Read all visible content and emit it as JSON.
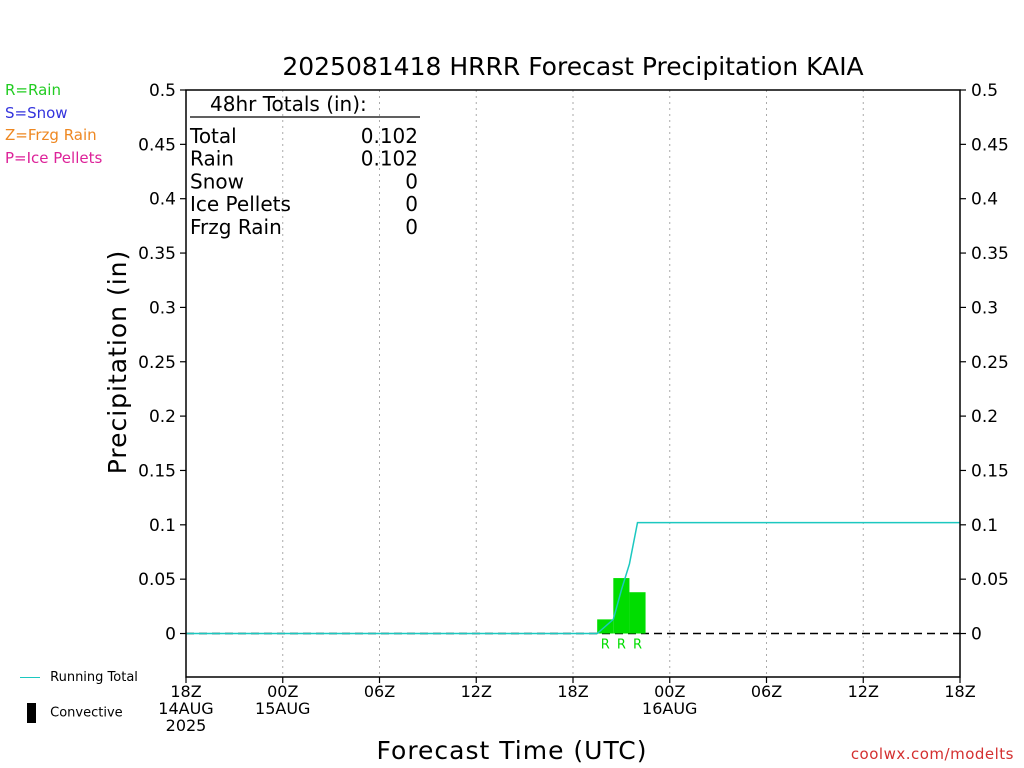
{
  "title": "2025081418 HRRR Forecast Precipitation KAIA",
  "precip_types": [
    {
      "label": "R=Rain",
      "color": "#22cc22"
    },
    {
      "label": "S=Snow",
      "color": "#3333dd"
    },
    {
      "label": "Z=Frzg Rain",
      "color": "#ee8822"
    },
    {
      "label": "P=Ice Pellets",
      "color": "#dd2299"
    }
  ],
  "legend": {
    "running_total": "Running Total",
    "convective": "Convective",
    "running_total_color": "#1cc8c0"
  },
  "totals_box": {
    "heading": "48hr Totals (in):",
    "rows": [
      {
        "label": "Total",
        "value": "0.102"
      },
      {
        "label": "Rain",
        "value": "0.102"
      },
      {
        "label": "Snow",
        "value": "0"
      },
      {
        "label": "Ice Pellets",
        "value": "0"
      },
      {
        "label": "Frzg Rain",
        "value": "0"
      }
    ]
  },
  "credit": "coolwx.com/modelts",
  "chart_data": {
    "type": "bar",
    "title": "2025081418 HRRR Forecast Precipitation KAIA",
    "xlabel": "Forecast Time (UTC)",
    "ylabel": "Precipitation (in)",
    "x_range_hours": [
      0,
      48
    ],
    "ylim": [
      -0.04,
      0.5
    ],
    "yticks": [
      0,
      0.05,
      0.1,
      0.15,
      0.2,
      0.25,
      0.3,
      0.35,
      0.4,
      0.45,
      0.5
    ],
    "xticks": [
      {
        "hour": 0,
        "lines": [
          "18Z",
          "14AUG",
          "2025"
        ]
      },
      {
        "hour": 6,
        "lines": [
          "00Z",
          "15AUG"
        ]
      },
      {
        "hour": 12,
        "lines": [
          "06Z"
        ]
      },
      {
        "hour": 18,
        "lines": [
          "12Z"
        ]
      },
      {
        "hour": 24,
        "lines": [
          "18Z"
        ]
      },
      {
        "hour": 30,
        "lines": [
          "00Z",
          "16AUG"
        ]
      },
      {
        "hour": 36,
        "lines": [
          "06Z"
        ]
      },
      {
        "hour": 42,
        "lines": [
          "12Z"
        ]
      },
      {
        "hour": 48,
        "lines": [
          "18Z"
        ]
      }
    ],
    "grid": "vertical dotted",
    "bars": [
      {
        "hour": 26,
        "value": 0.013,
        "type": "R",
        "color": "#00dd00"
      },
      {
        "hour": 27,
        "value": 0.051,
        "type": "R",
        "color": "#00dd00"
      },
      {
        "hour": 28,
        "value": 0.038,
        "type": "R",
        "color": "#00dd00"
      }
    ],
    "running_total": {
      "name": "Running Total",
      "x": [
        0,
        25,
        25.5,
        26.5,
        27,
        27.5,
        28,
        48
      ],
      "y": [
        0,
        0,
        0,
        0.013,
        0.04,
        0.064,
        0.102,
        0.102
      ]
    }
  }
}
